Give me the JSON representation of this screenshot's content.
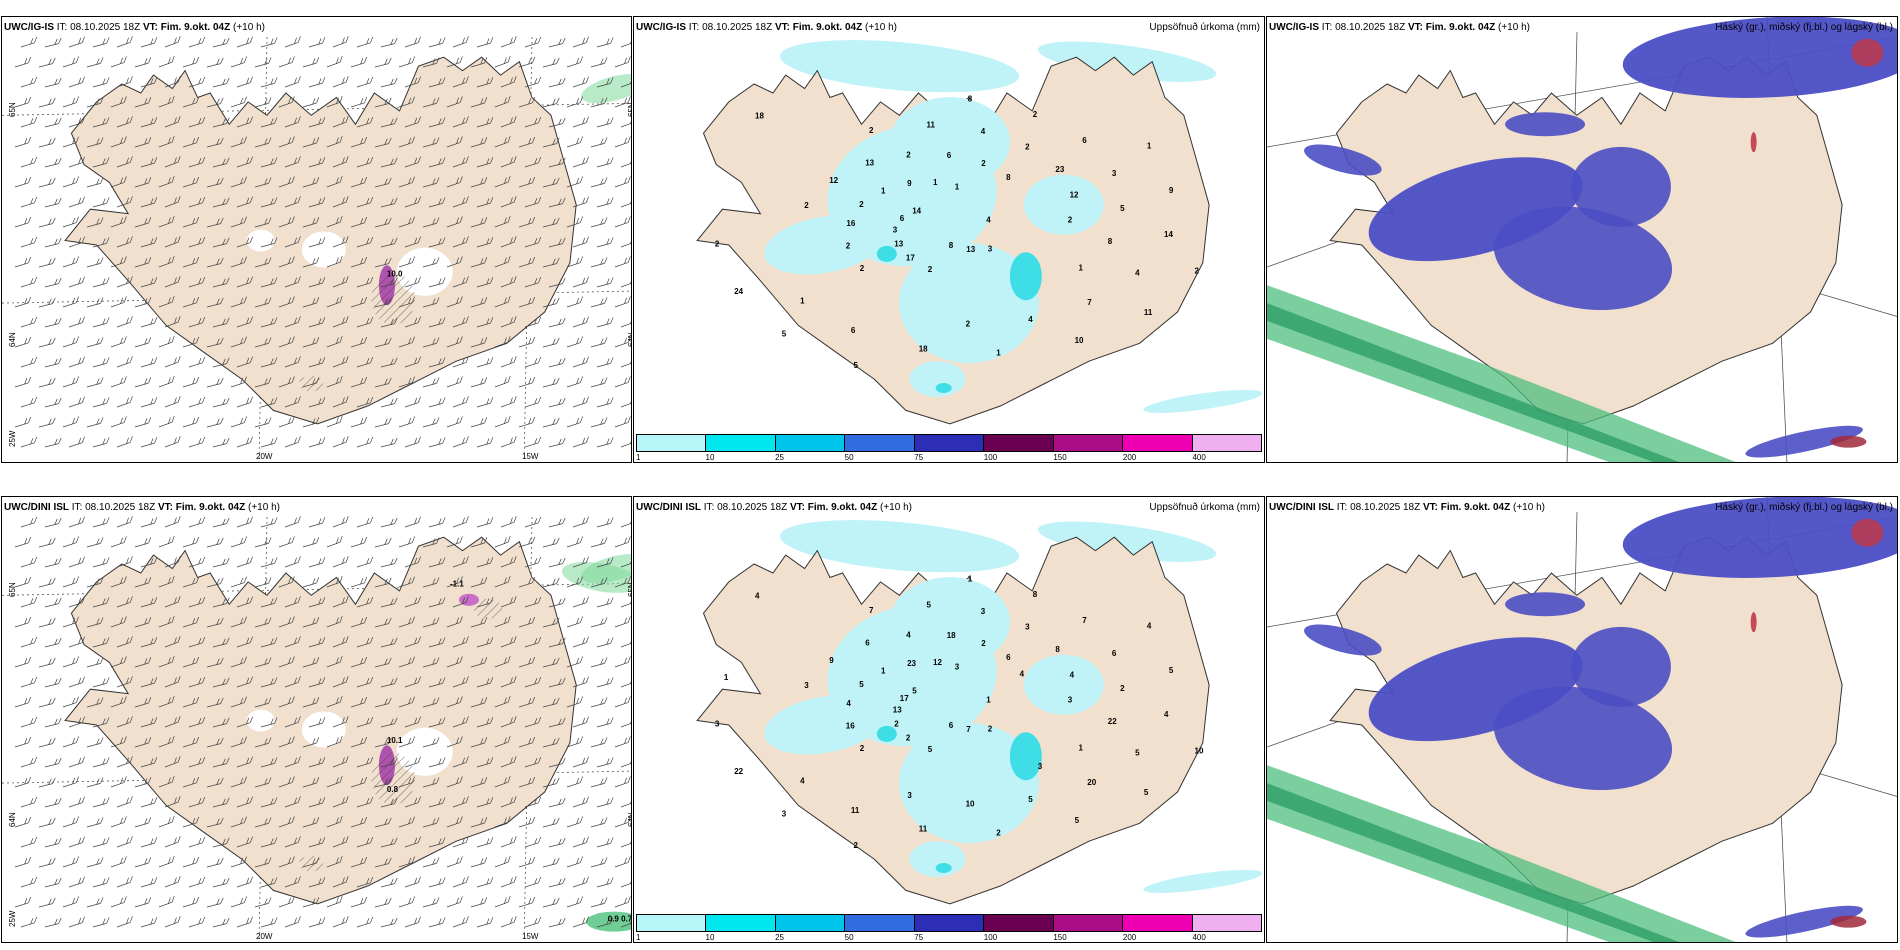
{
  "panels": [
    {
      "id": "p1",
      "model": "UWC/IG-IS",
      "it_label": "IT:",
      "it": "08.10.2025 18Z",
      "vt_label": "VT:",
      "vt": "Fim. 9.okt. 04Z",
      "lead": "(+10 h)",
      "right": "",
      "type": "wind"
    },
    {
      "id": "p2",
      "model": "UWC/IG-IS",
      "it_label": "IT:",
      "it": "08.10.2025 18Z",
      "vt_label": "VT:",
      "vt": "Fim. 9.okt. 04Z",
      "lead": "(+10 h)",
      "right": "Uppsöfnuð úrkoma (mm)",
      "type": "precip"
    },
    {
      "id": "p3",
      "model": "UWC/IG-IS",
      "it_label": "IT:",
      "it": "08.10.2025 18Z",
      "vt_label": "VT:",
      "vt": "Fim. 9.okt. 04Z",
      "lead": "(+10 h)",
      "right": "Háský (gr.), miðský (fj.bl.) og lágský (bl.)",
      "type": "cloud"
    },
    {
      "id": "p4",
      "model": "UWC/DINI ISL",
      "it_label": "IT:",
      "it": "08.10.2025 18Z",
      "vt_label": "VT:",
      "vt": "Fim. 9.okt. 04Z",
      "lead": "(+10 h)",
      "right": "",
      "type": "wind"
    },
    {
      "id": "p5",
      "model": "UWC/DINI ISL",
      "it_label": "IT:",
      "it": "08.10.2025 18Z",
      "vt_label": "VT:",
      "vt": "Fim. 9.okt. 04Z",
      "lead": "(+10 h)",
      "right": "Uppsöfnuð úrkoma (mm)",
      "type": "precip"
    },
    {
      "id": "p6",
      "model": "UWC/DINI ISL",
      "it_label": "IT:",
      "it": "08.10.2025 18Z",
      "vt_label": "VT:",
      "vt": "Fim. 9.okt. 04Z",
      "lead": "(+10 h)",
      "right": "Háský (gr.), miðský (fj.bl.) og lágský (bl.)",
      "type": "cloud"
    }
  ],
  "axes": {
    "lat_labels": [
      "65N",
      "64N",
      "25W"
    ],
    "lon_labels": [
      "20W",
      "15W"
    ]
  },
  "colorbar": {
    "ticks": [
      "1",
      "10",
      "25",
      "50",
      "75",
      "100",
      "150",
      "200",
      "400"
    ],
    "colors": [
      "#b6f5f8",
      "#00e7ef",
      "#00c5ea",
      "#2f6de0",
      "#2c2fb5",
      "#6a0050",
      "#aa0d86",
      "#ee00b2",
      "#f0b0f0"
    ]
  },
  "colors": {
    "land": "#f1e0cd",
    "sea": "#ffffff",
    "precip_light": "#bff3f7",
    "cloud_mid": "#4b4ec4",
    "cloud_high": "#4fbf7e",
    "cloud_low": "#6e9de8"
  },
  "wind_labels": {
    "p1": [
      "10.0"
    ],
    "p4": [
      "-1.1",
      "10.1",
      "0.8",
      "0.9 0.7"
    ]
  },
  "precip_labels": {
    "p2": [
      "4",
      "2",
      "8",
      "3",
      "2",
      "1",
      "2",
      "2",
      "2",
      "2",
      "2",
      "13",
      "12",
      "9",
      "17",
      "11",
      "11",
      "16",
      "6",
      "8",
      "13",
      "14",
      "13",
      "4",
      "10",
      "2",
      "3",
      "5",
      "2",
      "4",
      "3",
      "2",
      "1",
      "1",
      "5",
      "5",
      "6",
      "7",
      "6",
      "23",
      "18",
      "9",
      "8",
      "24",
      "2",
      "4",
      "14",
      "12",
      "6",
      "1",
      "1",
      "2",
      "8",
      "2",
      "18",
      "2",
      "1",
      "1"
    ],
    "p5": [
      "1",
      "2",
      "1",
      "2",
      "3",
      "4",
      "5",
      "7",
      "10",
      "16",
      "8",
      "7",
      "9",
      "5",
      "2",
      "5",
      "5",
      "4",
      "7",
      "6",
      "6",
      "4",
      "2",
      "3",
      "5",
      "5",
      "6",
      "2",
      "4",
      "5",
      "13",
      "3",
      "2",
      "1",
      "2",
      "3",
      "18",
      "20",
      "17",
      "8",
      "11",
      "23",
      "22",
      "22",
      "2",
      "5",
      "5",
      "4",
      "11",
      "12",
      "1",
      "3",
      "6",
      "10",
      "4",
      "3",
      "4",
      "3",
      "3",
      "1",
      "4",
      "3"
    ]
  }
}
